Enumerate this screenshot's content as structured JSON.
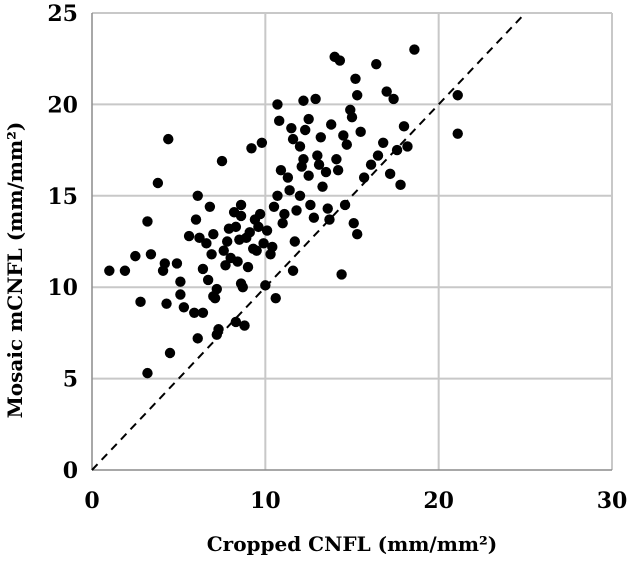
{
  "chart_data": {
    "type": "scatter",
    "xlabel": "Cropped CNFL (mm/mm²)",
    "ylabel": "Mosaic mCNFL (mm/mm²)",
    "xlim": [
      0,
      30
    ],
    "ylim": [
      0,
      25
    ],
    "x_ticks": [
      0,
      10,
      20,
      30
    ],
    "y_ticks": [
      0,
      5,
      10,
      15,
      20,
      25
    ],
    "grid": true,
    "point_color": "#000000",
    "gridline_color": "#c8c8c8",
    "reference_line": {
      "style": "dashed",
      "slope": 1,
      "intercept": 0
    },
    "points": [
      [
        1.0,
        10.9
      ],
      [
        1.9,
        10.9
      ],
      [
        2.5,
        11.7
      ],
      [
        2.8,
        9.2
      ],
      [
        3.2,
        13.6
      ],
      [
        3.4,
        11.8
      ],
      [
        3.2,
        5.3
      ],
      [
        3.8,
        15.7
      ],
      [
        4.1,
        10.9
      ],
      [
        4.2,
        11.3
      ],
      [
        4.4,
        18.1
      ],
      [
        4.3,
        9.1
      ],
      [
        4.5,
        6.4
      ],
      [
        4.9,
        11.3
      ],
      [
        5.1,
        9.6
      ],
      [
        5.1,
        10.3
      ],
      [
        5.3,
        8.9
      ],
      [
        5.6,
        12.8
      ],
      [
        5.9,
        8.6
      ],
      [
        6.1,
        15.0
      ],
      [
        6.0,
        13.7
      ],
      [
        6.2,
        12.7
      ],
      [
        6.1,
        7.2
      ],
      [
        6.4,
        11.0
      ],
      [
        6.4,
        8.6
      ],
      [
        6.6,
        12.4
      ],
      [
        6.7,
        10.4
      ],
      [
        6.8,
        14.4
      ],
      [
        6.9,
        11.8
      ],
      [
        7.0,
        12.9
      ],
      [
        7.1,
        9.4
      ],
      [
        7.2,
        9.9
      ],
      [
        7.2,
        7.4
      ],
      [
        7.3,
        7.7
      ],
      [
        7.5,
        16.9
      ],
      [
        7.6,
        12.0
      ],
      [
        7.7,
        11.2
      ],
      [
        7.8,
        12.5
      ],
      [
        7.9,
        13.2
      ],
      [
        8.0,
        11.6
      ],
      [
        8.2,
        14.1
      ],
      [
        8.3,
        13.3
      ],
      [
        8.3,
        8.1
      ],
      [
        8.4,
        11.4
      ],
      [
        8.5,
        12.6
      ],
      [
        8.6,
        13.9
      ],
      [
        8.6,
        14.5
      ],
      [
        8.7,
        10.0
      ],
      [
        8.8,
        7.9
      ],
      [
        8.9,
        12.7
      ],
      [
        9.0,
        11.1
      ],
      [
        9.1,
        13.0
      ],
      [
        9.2,
        17.6
      ],
      [
        9.3,
        12.1
      ],
      [
        9.4,
        13.7
      ],
      [
        9.5,
        12.0
      ],
      [
        9.7,
        14.0
      ],
      [
        9.8,
        17.9
      ],
      [
        9.9,
        12.4
      ],
      [
        10.0,
        10.1
      ],
      [
        10.1,
        13.1
      ],
      [
        10.3,
        11.8
      ],
      [
        10.4,
        12.2
      ],
      [
        10.5,
        14.4
      ],
      [
        10.6,
        9.4
      ],
      [
        10.7,
        15.0
      ],
      [
        10.7,
        20.0
      ],
      [
        10.8,
        19.1
      ],
      [
        10.9,
        16.4
      ],
      [
        11.0,
        13.5
      ],
      [
        11.1,
        14.0
      ],
      [
        11.3,
        16.0
      ],
      [
        11.4,
        15.3
      ],
      [
        11.5,
        18.7
      ],
      [
        11.6,
        10.9
      ],
      [
        11.7,
        12.5
      ],
      [
        11.8,
        14.2
      ],
      [
        12.0,
        15.0
      ],
      [
        12.0,
        17.7
      ],
      [
        12.1,
        16.6
      ],
      [
        12.2,
        20.2
      ],
      [
        12.3,
        18.6
      ],
      [
        12.5,
        19.2
      ],
      [
        12.5,
        16.1
      ],
      [
        12.6,
        14.5
      ],
      [
        12.8,
        13.8
      ],
      [
        12.9,
        20.3
      ],
      [
        13.0,
        17.2
      ],
      [
        13.1,
        16.7
      ],
      [
        13.2,
        18.2
      ],
      [
        13.3,
        15.5
      ],
      [
        13.5,
        16.3
      ],
      [
        13.6,
        14.3
      ],
      [
        13.7,
        13.7
      ],
      [
        13.8,
        18.9
      ],
      [
        14.0,
        22.6
      ],
      [
        14.1,
        17.0
      ],
      [
        14.2,
        16.4
      ],
      [
        14.3,
        22.4
      ],
      [
        14.4,
        10.7
      ],
      [
        14.5,
        18.3
      ],
      [
        14.6,
        14.5
      ],
      [
        14.7,
        17.8
      ],
      [
        14.9,
        19.7
      ],
      [
        15.0,
        19.3
      ],
      [
        15.1,
        13.5
      ],
      [
        15.2,
        21.4
      ],
      [
        15.3,
        20.5
      ],
      [
        15.5,
        18.5
      ],
      [
        15.7,
        16.0
      ],
      [
        16.1,
        16.7
      ],
      [
        16.4,
        22.2
      ],
      [
        16.5,
        17.2
      ],
      [
        16.8,
        17.9
      ],
      [
        17.0,
        20.7
      ],
      [
        17.2,
        16.2
      ],
      [
        17.4,
        20.3
      ],
      [
        17.6,
        17.5
      ],
      [
        17.8,
        15.6
      ],
      [
        18.0,
        18.8
      ],
      [
        18.2,
        17.7
      ],
      [
        18.6,
        23.0
      ],
      [
        21.1,
        20.5
      ],
      [
        21.1,
        18.4
      ],
      [
        15.3,
        12.9
      ],
      [
        12.2,
        17.0
      ],
      [
        11.6,
        18.1
      ],
      [
        9.6,
        13.3
      ],
      [
        8.6,
        10.2
      ],
      [
        7.0,
        9.5
      ]
    ]
  }
}
